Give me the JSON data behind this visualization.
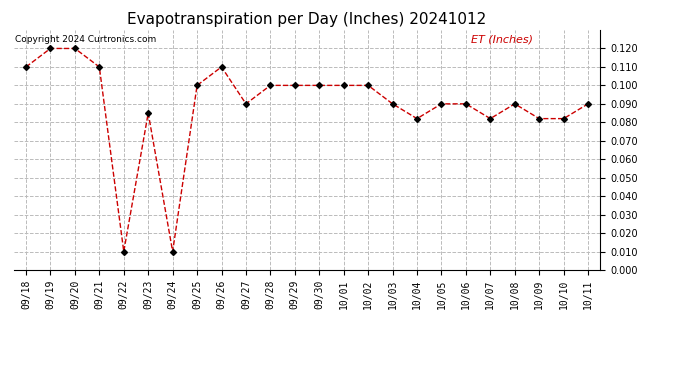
{
  "title": "Evapotranspiration per Day (Inches) 20241012",
  "copyright": "Copyright 2024 Curtronics.com",
  "legend_label": "ET (Inches)",
  "dates": [
    "09/18",
    "09/19",
    "09/20",
    "09/21",
    "09/22",
    "09/23",
    "09/24",
    "09/25",
    "09/26",
    "09/27",
    "09/28",
    "09/29",
    "09/30",
    "10/01",
    "10/02",
    "10/03",
    "10/04",
    "10/05",
    "10/06",
    "10/07",
    "10/08",
    "10/09",
    "10/10",
    "10/11"
  ],
  "values": [
    0.11,
    0.12,
    0.12,
    0.11,
    0.01,
    0.085,
    0.01,
    0.1,
    0.11,
    0.09,
    0.1,
    0.1,
    0.1,
    0.1,
    0.1,
    0.09,
    0.082,
    0.09,
    0.09,
    0.082,
    0.09,
    0.082,
    0.082,
    0.09
  ],
  "ylim": [
    0.0,
    0.13
  ],
  "yticks": [
    0.0,
    0.01,
    0.02,
    0.03,
    0.04,
    0.05,
    0.06,
    0.07,
    0.08,
    0.09,
    0.1,
    0.11,
    0.12
  ],
  "line_color": "#cc0000",
  "marker": "D",
  "marker_color": "#000000",
  "marker_size": 3,
  "line_width": 1.0,
  "bg_color": "#ffffff",
  "grid_color": "#bbbbbb",
  "title_fontsize": 11,
  "copyright_fontsize": 6.5,
  "legend_fontsize": 8,
  "tick_fontsize": 7,
  "ytick_fontsize": 7
}
